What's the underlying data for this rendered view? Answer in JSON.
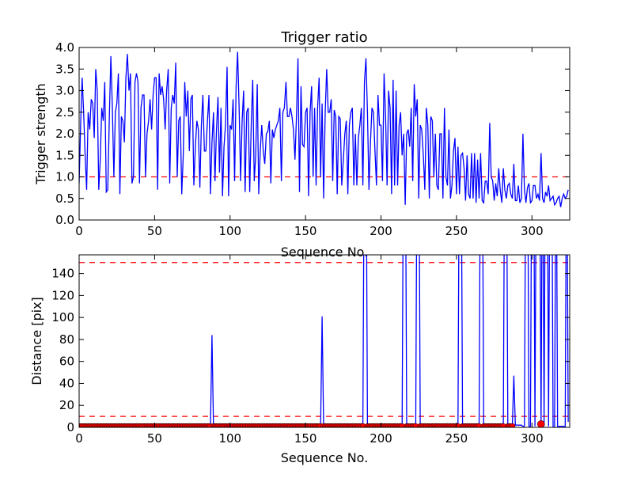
{
  "chart_data": [
    {
      "type": "line",
      "title": "Trigger ratio",
      "xlabel": "Sequence No.",
      "ylabel": "Trigger strength",
      "xlim": [
        0,
        325
      ],
      "ylim": [
        0,
        4.0
      ],
      "xticks": [
        0,
        50,
        100,
        150,
        200,
        250,
        300
      ],
      "xtick_labels": [
        "0",
        "50",
        "100",
        "150",
        "200",
        "250",
        "300"
      ],
      "yticks": [
        0,
        0.5,
        1,
        1.5,
        2,
        2.5,
        3,
        3.5,
        4
      ],
      "ytick_labels": [
        "0.0",
        "0.5",
        "1.0",
        "1.5",
        "2.0",
        "2.5",
        "3.0",
        "3.5",
        "4.0"
      ],
      "grid": false,
      "series": [
        {
          "name": "trigger strength",
          "color": "#0000ff",
          "x_start": 0,
          "x_step": 1,
          "values": [
            0.85,
            2.2,
            3.3,
            2.5,
            1.5,
            0.7,
            2.5,
            2.1,
            2.8,
            2.7,
            1.9,
            3.5,
            3.0,
            0.7,
            1.4,
            2.6,
            2.3,
            3.2,
            0.65,
            0.7,
            2.4,
            3.8,
            2.6,
            1.0,
            2.5,
            2.7,
            3.4,
            0.6,
            2.4,
            2.3,
            1.8,
            3.3,
            3.85,
            3.0,
            3.4,
            0.85,
            1.0,
            3.2,
            3.4,
            3.2,
            0.85,
            2.6,
            2.9,
            2.9,
            1.0,
            2.0,
            2.3,
            2.8,
            2.1,
            2.9,
            3.3,
            3.3,
            0.7,
            3.4,
            2.9,
            3.1,
            2.8,
            2.1,
            3.0,
            3.5,
            0.85,
            2.6,
            2.9,
            2.7,
            3.65,
            1.0,
            2.3,
            2.4,
            0.6,
            1.5,
            3.2,
            2.4,
            3.0,
            1.6,
            2.8,
            2.9,
            0.8,
            1.7,
            2.3,
            2.1,
            0.75,
            2.2,
            2.9,
            1.6,
            1.6,
            2.3,
            2.9,
            0.6,
            1.8,
            2.5,
            0.9,
            2.1,
            2.85,
            1.1,
            2.6,
            0.55,
            1.7,
            2.2,
            3.55,
            0.55,
            2.2,
            2.1,
            2.8,
            0.9,
            3.1,
            3.9,
            2.6,
            0.9,
            2.3,
            3.0,
            0.65,
            2.5,
            2.6,
            0.65,
            2.2,
            3.25,
            0.9,
            1.5,
            3.15,
            0.6,
            1.6,
            2.2,
            1.6,
            1.3,
            2.0,
            2.05,
            2.3,
            0.85,
            2.1,
            1.9,
            2.1,
            2.2,
            2.3,
            2.6,
            0.9,
            2.5,
            2.6,
            3.2,
            2.4,
            2.4,
            2.6,
            2.4,
            2.1,
            1.4,
            2.4,
            3.75,
            0.65,
            3.1,
            1.75,
            1.7,
            2.5,
            2.6,
            0.55,
            2.5,
            3.1,
            1.0,
            2.6,
            0.8,
            2.6,
            3.3,
            1.0,
            2.7,
            0.5,
            2.5,
            3.5,
            2.5,
            2.5,
            2.8,
            0.9,
            2.55,
            2.4,
            0.6,
            2.4,
            2.35,
            0.8,
            1.35,
            2.0,
            2.3,
            0.6,
            2.2,
            2.5,
            2.6,
            0.8,
            2.0,
            0.8,
            1.9,
            2.2,
            2.6,
            0.8,
            3.2,
            3.75,
            2.5,
            0.7,
            1.8,
            2.6,
            2.5,
            1.6,
            0.8,
            2.9,
            2.2,
            2.2,
            0.9,
            3.4,
            2.4,
            0.8,
            3.0,
            2.6,
            0.6,
            3.25,
            0.8,
            3.0,
            0.8,
            2.2,
            2.5,
            1.5,
            2.0,
            0.35,
            2.0,
            2.1,
            1.7,
            2.6,
            0.9,
            3.15,
            2.4,
            2.8,
            0.5,
            2.2,
            2.1,
            1.5,
            0.7,
            2.6,
            2.2,
            0.5,
            2.4,
            2.3,
            1.0,
            2.0,
            0.8,
            0.7,
            2.0,
            2.0,
            0.5,
            2.6,
            1.0,
            0.8,
            2.1,
            0.5,
            0.8,
            1.6,
            1.9,
            0.6,
            1.7,
            0.6,
            1.5,
            1.55,
            1.2,
            0.45,
            1.5,
            0.6,
            0.5,
            1.55,
            0.5,
            1.55,
            0.4,
            1.4,
            0.5,
            1.55,
            0.45,
            0.4,
            0.9,
            0.9,
            0.6,
            2.25,
            1.0,
            0.9,
            0.45,
            0.85,
            0.55,
            1.2,
            0.7,
            0.4,
            1.2,
            0.7,
            0.5,
            0.8,
            0.85,
            0.6,
            0.5,
            1.3,
            0.45,
            0.45,
            0.8,
            0.4,
            0.5,
            2.0,
            0.7,
            0.4,
            0.75,
            0.85,
            0.4,
            0.45,
            0.8,
            0.8,
            0.5,
            0.6,
            0.45,
            1.55,
            0.5,
            0.4,
            0.65,
            0.55,
            0.8,
            0.45,
            0.5,
            0.55,
            0.35,
            0.4,
            0.5,
            0.55,
            0.3,
            0.5,
            0.6,
            0.5,
            0.55,
            0.7
          ]
        }
      ],
      "hlines": [
        {
          "y": 1.0,
          "color": "#ff0000",
          "style": "dashed"
        }
      ]
    },
    {
      "type": "line",
      "title": "",
      "xlabel": "Sequence No.",
      "ylabel": "Distance [pix]",
      "xlim": [
        0,
        325
      ],
      "ylim": [
        0,
        157
      ],
      "xticks": [
        0,
        50,
        100,
        150,
        200,
        250,
        300
      ],
      "xtick_labels": [
        "0",
        "50",
        "100",
        "150",
        "200",
        "250",
        "300"
      ],
      "yticks": [
        0,
        20,
        40,
        60,
        80,
        100,
        120,
        140
      ],
      "ytick_labels": [
        "0",
        "20",
        "40",
        "60",
        "80",
        "100",
        "120",
        "140"
      ],
      "grid": false,
      "series": [
        {
          "name": "distance",
          "color": "#0000ff",
          "x_start": 0,
          "x_end": 325,
          "default_value": 1,
          "spikes": [
            [
              88,
              84
            ],
            [
              161,
              101
            ],
            [
              189,
              300
            ],
            [
              190,
              300
            ],
            [
              215,
              300
            ],
            [
              216,
              300
            ],
            [
              224,
              300
            ],
            [
              225,
              300
            ],
            [
              252,
              300
            ],
            [
              253,
              300
            ],
            [
              266,
              300
            ],
            [
              267,
              300
            ],
            [
              282,
              300
            ],
            [
              283,
              300
            ],
            [
              288,
              47
            ],
            [
              289,
              2
            ],
            [
              290,
              2
            ],
            [
              291,
              2
            ],
            [
              292,
              2
            ],
            [
              293,
              2
            ],
            [
              296,
              300
            ],
            [
              297,
              300
            ],
            [
              298,
              1
            ],
            [
              300,
              300
            ],
            [
              301,
              300
            ],
            [
              302,
              1
            ],
            [
              303,
              300
            ],
            [
              304,
              300
            ],
            [
              305,
              300
            ],
            [
              307,
              300
            ],
            [
              308,
              1
            ],
            [
              309,
              300
            ],
            [
              310,
              300
            ],
            [
              311,
              1
            ],
            [
              312,
              300
            ],
            [
              313,
              300
            ],
            [
              314,
              0
            ],
            [
              315,
              0
            ],
            [
              316,
              300
            ],
            [
              317,
              0
            ],
            [
              322,
              0
            ],
            [
              323,
              300
            ],
            [
              324,
              5
            ]
          ]
        },
        {
          "name": "matched points",
          "color": "#ff0000",
          "marker": "circle",
          "max_x": 287,
          "max_value": 10,
          "extra_points": [
            [
              306,
              3
            ]
          ]
        }
      ],
      "hlines": [
        {
          "y": 10,
          "color": "#ff0000",
          "style": "dashed"
        },
        {
          "y": 150,
          "color": "#ff0000",
          "style": "dashed"
        }
      ]
    }
  ]
}
